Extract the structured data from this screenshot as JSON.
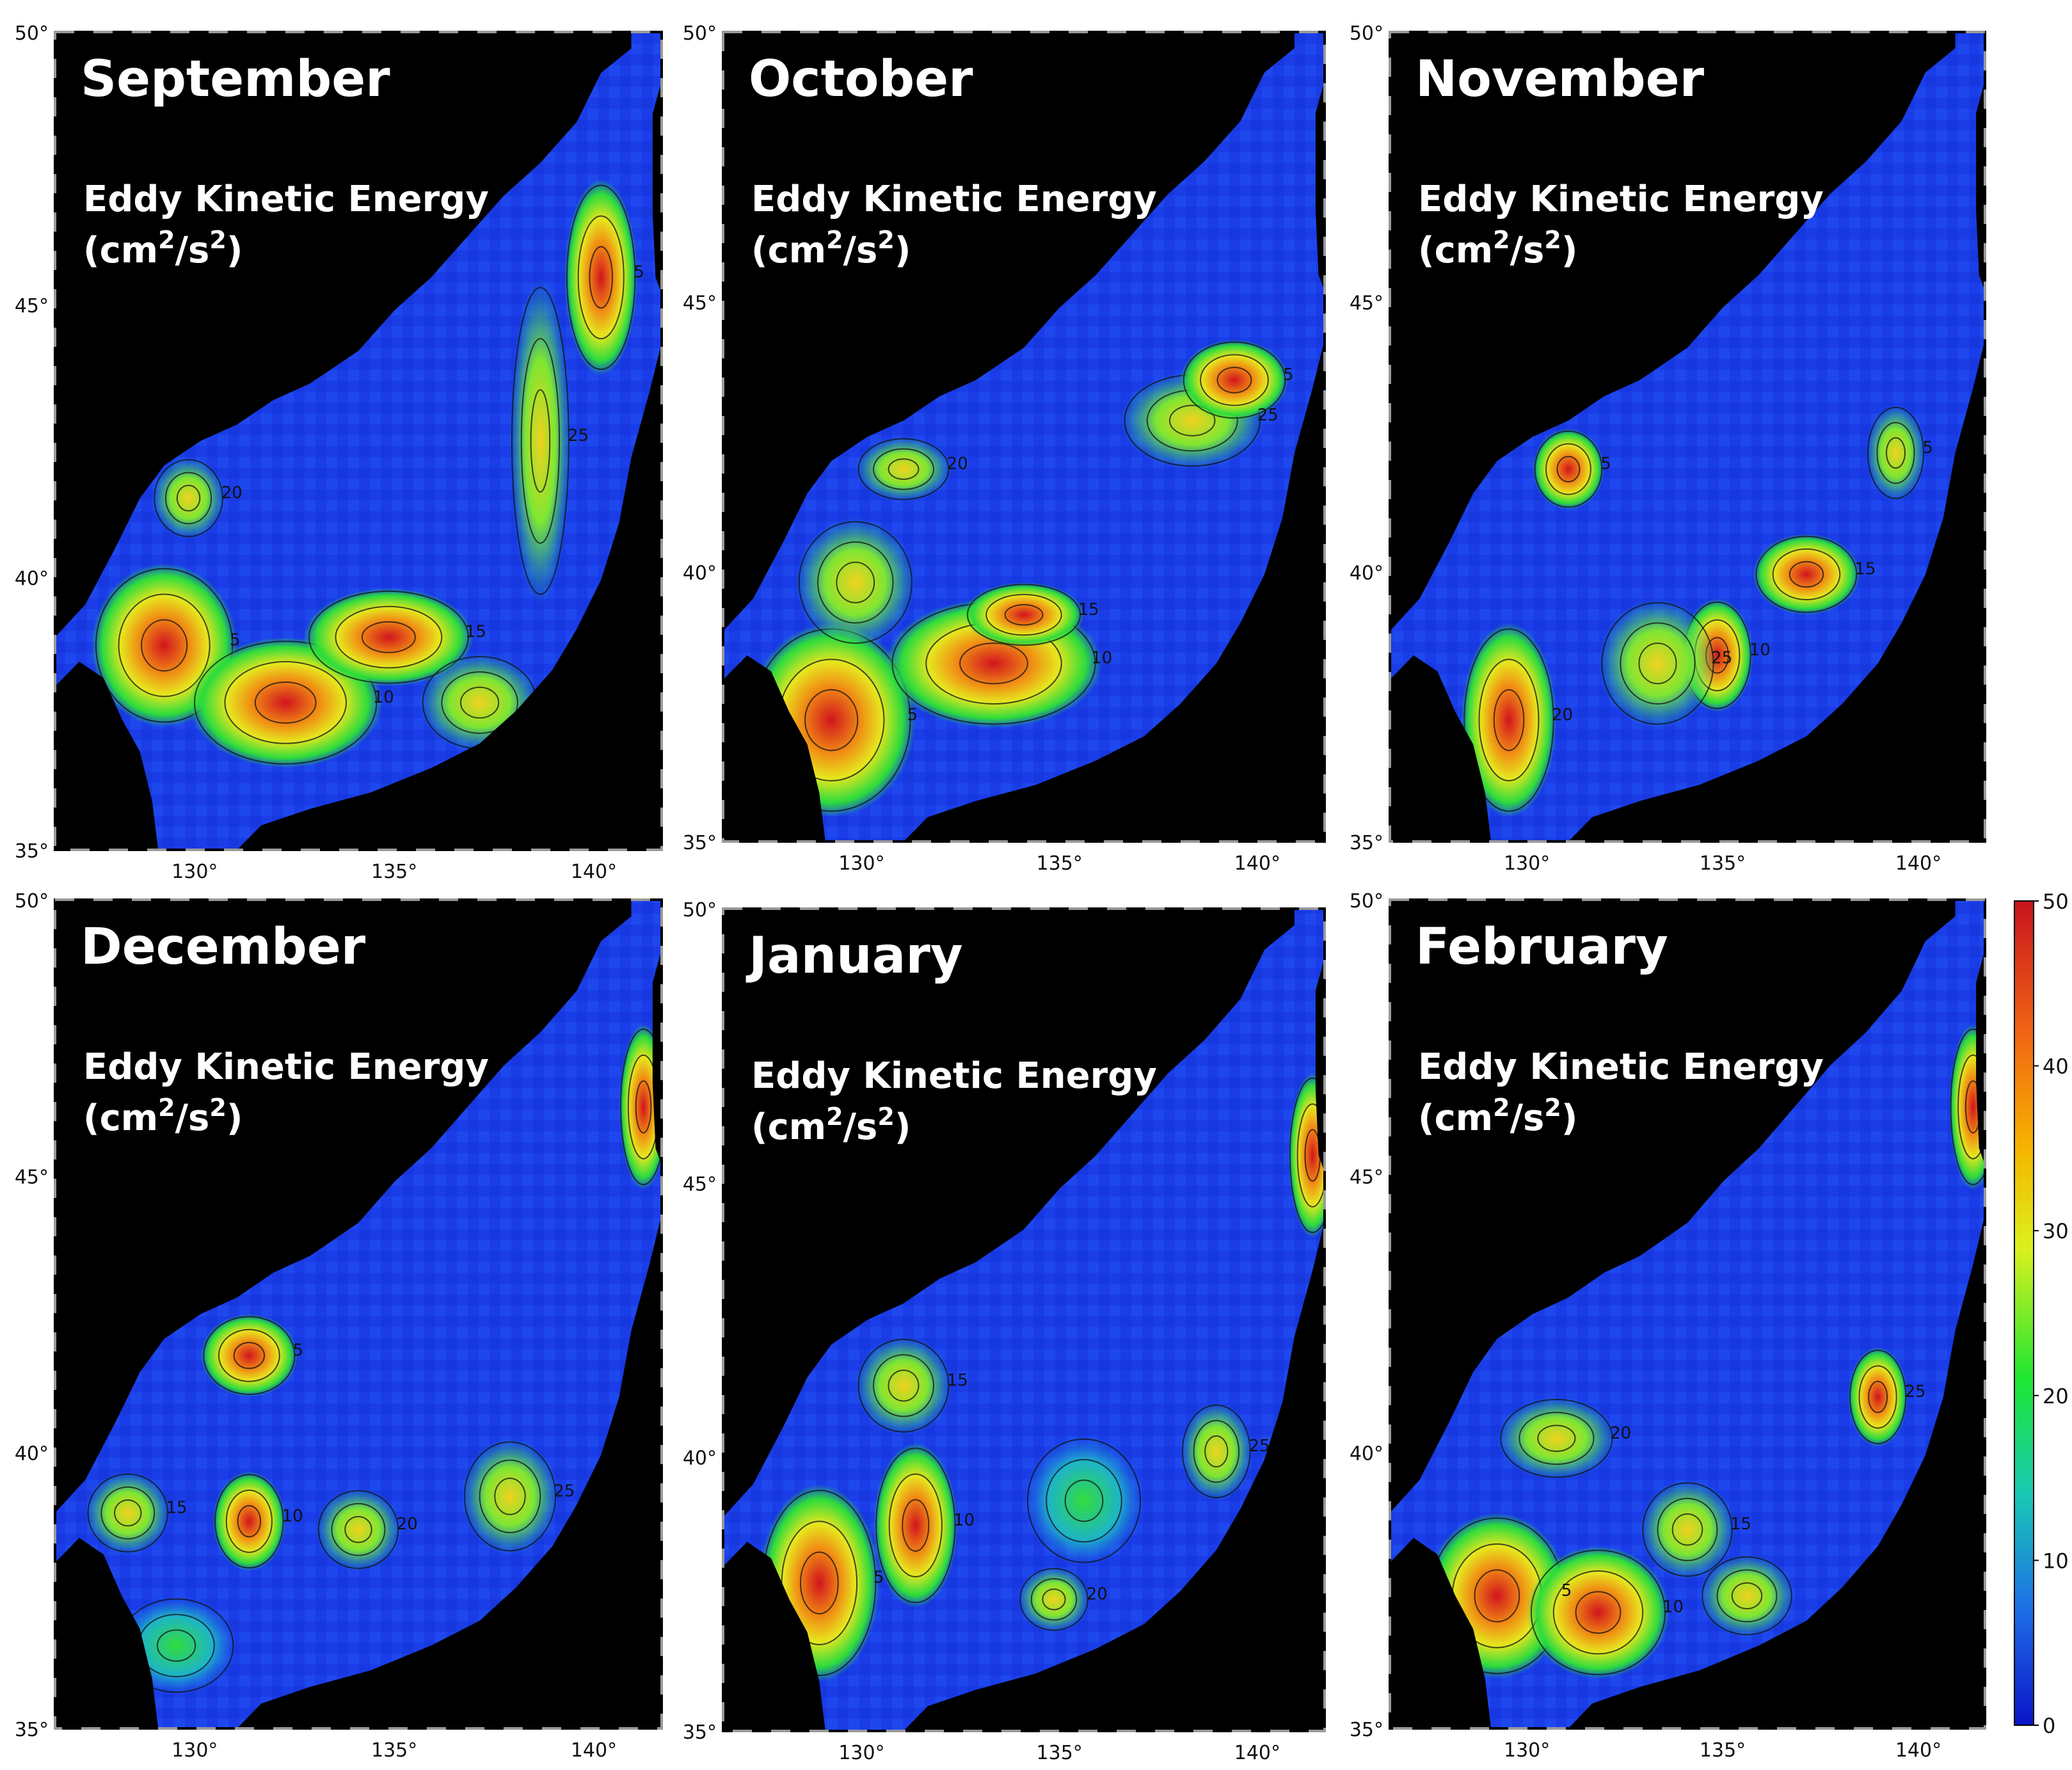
{
  "figure": {
    "variable_label": "Eddy Kinetic Energy",
    "unit_label_base": "(cm",
    "unit_exp1": "2",
    "unit_mid": "/s",
    "unit_exp2": "2",
    "unit_close": ")"
  },
  "panels": [
    {
      "month": "September"
    },
    {
      "month": "October"
    },
    {
      "month": "November"
    },
    {
      "month": "December"
    },
    {
      "month": "January"
    },
    {
      "month": "February"
    }
  ],
  "axes": {
    "lat_ticks": [
      "50°",
      "45°",
      "40°",
      "35°"
    ],
    "lon_ticks": [
      "130°",
      "135°",
      "140°"
    ],
    "lat_range": [
      35,
      50
    ],
    "lon_range": [
      126.5,
      141.7
    ]
  },
  "colorbar": {
    "ticks": [
      "50",
      "40",
      "30",
      "20",
      "10",
      "0"
    ],
    "range": [
      0,
      50
    ],
    "colors": [
      "#0a14c8",
      "#1e6ee6",
      "#19c8b4",
      "#1ee632",
      "#dcf01e",
      "#f5b400",
      "#f06414",
      "#c8141e"
    ]
  },
  "map_colors": {
    "land": "#000000",
    "sea_low": "#1a3de8",
    "frame_tick": "#888888"
  }
}
